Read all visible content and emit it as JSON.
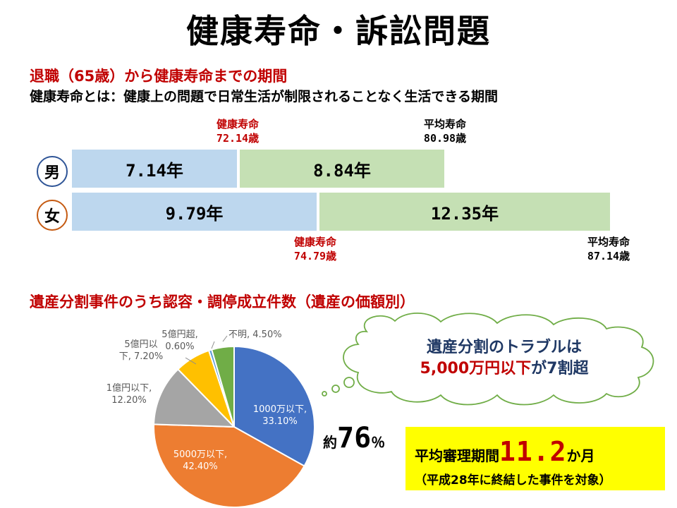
{
  "title": "健康寿命・訴訟問題",
  "section1": {
    "heading": "退職（65歳）から健康寿命までの期間",
    "definition": "健康寿命とは：健康上の問題で日常生活が制限されることなく生活できる期間"
  },
  "section2": {
    "heading": "遺産分割事件のうち認容・調停成立件数（遺産の価額別）"
  },
  "lifespan": {
    "male": {
      "label": "男",
      "healthy_period": "7.14年",
      "unhealthy_period": "8.84年",
      "healthy_label": "健康寿命",
      "healthy_value": "72.14歳",
      "average_label": "平均寿命",
      "average_value": "80.98歳"
    },
    "female": {
      "label": "女",
      "healthy_period": "9.79年",
      "unhealthy_period": "12.35年",
      "healthy_label": "健康寿命",
      "healthy_value": "74.79歳",
      "average_label": "平均寿命",
      "average_value": "87.14歳"
    },
    "colors": {
      "healthy": "#bdd7ee",
      "unhealthy": "#c5e0b4"
    }
  },
  "chart_data": {
    "type": "pie",
    "title": "",
    "slices": [
      {
        "name": "1000万以下",
        "label": "1000万以下,",
        "pct_label": "33.10%",
        "value": 33.1,
        "color": "#4472c4"
      },
      {
        "name": "5000万以下",
        "label": "5000万以下,",
        "pct_label": "42.40%",
        "value": 42.4,
        "color": "#ed7d31"
      },
      {
        "name": "1億円以下",
        "label": "1億円以下,",
        "pct_label": "12.20%",
        "value": 12.2,
        "color": "#a5a5a5"
      },
      {
        "name": "5億円以下",
        "label": "5億円以",
        "label2": "下,",
        "pct_label": "7.20%",
        "value": 7.2,
        "color": "#ffc000"
      },
      {
        "name": "5億円超",
        "label": "5億円超,",
        "pct_label": "0.60%",
        "value": 0.6,
        "color": "#5b9bd5"
      },
      {
        "name": "不明",
        "label": "不明,",
        "pct_label": "4.50%",
        "value": 4.5,
        "color": "#70ad47"
      }
    ]
  },
  "approx": {
    "prefix": "約",
    "number": "76",
    "suffix": "％"
  },
  "callout": {
    "line1": "遺産分割のトラブルは",
    "line2_highlight": "5,000万円以下",
    "line2_rest": "が7割超"
  },
  "trial": {
    "label": "平均審理期間",
    "value": "11.2",
    "unit": "か月",
    "note": "（平成28年に終結した事件を対象）"
  }
}
